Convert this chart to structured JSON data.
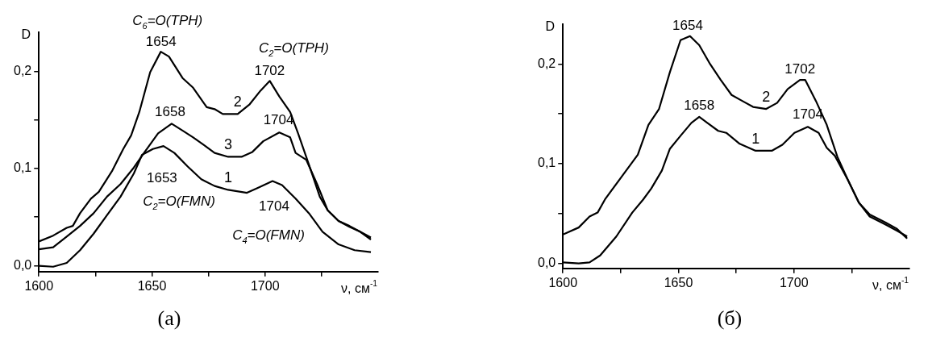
{
  "chart_data": [
    {
      "type": "line",
      "xlabel": "ν, см$^{-1}$",
      "ylabel": "D",
      "xlim": [
        1600,
        1750
      ],
      "ylim": [
        -0.006,
        0.24
      ],
      "xticks": [
        1600,
        {
          "value": 1625,
          "label": null
        },
        1650,
        {
          "value": 1675,
          "label": null
        },
        1700,
        {
          "value": 1725,
          "label": null
        }
      ],
      "yticks": [
        {
          "value": 0,
          "label": "0,0"
        },
        {
          "value": 0.05,
          "label": null
        },
        {
          "value": 0.1,
          "label": "0,1"
        },
        {
          "value": 0.15,
          "label": null
        },
        {
          "value": 0.2,
          "label": "0,2"
        }
      ],
      "series": [
        {
          "name": "2",
          "color": "#000000",
          "x": [
            1600,
            1606.3,
            1612.3,
            1615,
            1618.2,
            1623,
            1626.5,
            1632.5,
            1637.3,
            1640.8,
            1644.4,
            1649.2,
            1653.9,
            1657.5,
            1663.5,
            1668.2,
            1674.2,
            1677.7,
            1681.3,
            1687.9,
            1693.2,
            1698,
            1702.1,
            1706.3,
            1711.1,
            1714.6,
            1719.4,
            1724.2,
            1727.7,
            1732.5,
            1737.3,
            1742,
            1746.8
          ],
          "values": [
            0.025,
            0.031,
            0.039,
            0.041,
            0.054,
            0.069,
            0.076,
            0.098,
            0.12,
            0.134,
            0.158,
            0.199,
            0.22,
            0.215,
            0.193,
            0.183,
            0.163,
            0.161,
            0.156,
            0.156,
            0.166,
            0.18,
            0.19,
            0.174,
            0.158,
            0.136,
            0.104,
            0.071,
            0.057,
            0.046,
            0.041,
            0.035,
            0.027
          ]
        },
        {
          "name": "3",
          "color": "#000000",
          "x": [
            1600,
            1606.3,
            1612.3,
            1618.2,
            1624.2,
            1630.1,
            1636.1,
            1642,
            1646.8,
            1652.7,
            1658.7,
            1663.5,
            1668.2,
            1673,
            1677.7,
            1683.7,
            1689.6,
            1694.4,
            1699.2,
            1706.3,
            1711.1,
            1713.5,
            1718.2,
            1723,
            1727.7,
            1732.5,
            1737.3,
            1742,
            1746.8
          ],
          "values": [
            0.017,
            0.019,
            0.03,
            0.041,
            0.054,
            0.071,
            0.084,
            0.101,
            0.117,
            0.136,
            0.146,
            0.139,
            0.132,
            0.124,
            0.116,
            0.112,
            0.112,
            0.117,
            0.128,
            0.137,
            0.132,
            0.116,
            0.109,
            0.084,
            0.057,
            0.046,
            0.04,
            0.035,
            0.029
          ]
        },
        {
          "name": "1",
          "color": "#000000",
          "x": [
            1600,
            1606.3,
            1612.3,
            1618.2,
            1624.2,
            1630.1,
            1636.1,
            1642,
            1645.6,
            1650.4,
            1655.1,
            1659.9,
            1665.8,
            1671.8,
            1677.7,
            1683.7,
            1692,
            1696.8,
            1703.3,
            1707.5,
            1713.5,
            1719.4,
            1725.4,
            1732.5,
            1739.6,
            1746.8
          ],
          "values": [
            0,
            -0.001,
            0.003,
            0.016,
            0.033,
            0.052,
            0.071,
            0.095,
            0.114,
            0.12,
            0.123,
            0.116,
            0.102,
            0.089,
            0.082,
            0.078,
            0.075,
            0.08,
            0.087,
            0.083,
            0.069,
            0.054,
            0.035,
            0.022,
            0.016,
            0.014
          ]
        }
      ],
      "annotations": [
        {
          "text": "1654",
          "x": 1654,
          "y": 0.22
        },
        {
          "text": "C$_{6}$=O(TPH)",
          "x": 1654,
          "y": 0.22
        },
        {
          "text": "1702",
          "x": 1702,
          "y": 0.19
        },
        {
          "text": "C$_{2}$=O(TPH)",
          "x": 1702,
          "y": 0.19
        },
        {
          "text": "1658",
          "x": 1658,
          "y": 0.146
        },
        {
          "text": "1704",
          "x": 1706,
          "y": 0.137
        },
        {
          "text": "1653",
          "x": 1653,
          "y": 0.123
        },
        "C$_{2}$=O(FMN)",
        {
          "text": "1704",
          "x": 1704,
          "y": 0.087
        },
        "C$_{4}$=O(FMN)",
        "(a)"
      ]
    },
    {
      "type": "line",
      "xlabel": "ν, см$^{-1}$",
      "ylabel": "D",
      "xlim": [
        1600,
        1750
      ],
      "ylim": [
        -0.005,
        0.24
      ],
      "xticks": [
        1600,
        {
          "value": 1625,
          "label": null
        },
        1650,
        {
          "value": 1675,
          "label": null
        },
        1700,
        {
          "value": 1725,
          "label": null
        }
      ],
      "yticks": [
        {
          "value": 0,
          "label": "0,0"
        },
        {
          "value": 0.05,
          "label": null
        },
        {
          "value": 0.1,
          "label": "0,1"
        },
        {
          "value": 0.15,
          "label": null
        },
        {
          "value": 0.2,
          "label": "0,2"
        }
      ],
      "series": [
        {
          "name": "2",
          "color": "#000000",
          "x": [
            1600,
            1606.8,
            1611.5,
            1615,
            1618.4,
            1625.4,
            1632.4,
            1637,
            1641.6,
            1646.3,
            1650.9,
            1655,
            1659,
            1663.7,
            1668.3,
            1673,
            1677.6,
            1682.3,
            1688,
            1692.7,
            1697.3,
            1702.6,
            1704.9,
            1709.5,
            1714.2,
            1718.8,
            1723.5,
            1728.1,
            1732.8,
            1739.7,
            1744.4,
            1749
          ],
          "values": [
            0.029,
            0.036,
            0.047,
            0.051,
            0.065,
            0.087,
            0.109,
            0.139,
            0.155,
            0.192,
            0.224,
            0.228,
            0.219,
            0.2,
            0.184,
            0.169,
            0.163,
            0.157,
            0.155,
            0.161,
            0.175,
            0.184,
            0.184,
            0.163,
            0.139,
            0.107,
            0.083,
            0.061,
            0.049,
            0.041,
            0.035,
            0.025
          ]
        },
        {
          "name": "1",
          "color": "#000000",
          "x": [
            1600,
            1606.8,
            1611.5,
            1616.1,
            1623.1,
            1630,
            1634.7,
            1638.2,
            1642.8,
            1646.3,
            1650.9,
            1655.6,
            1659,
            1662.5,
            1667.2,
            1670.7,
            1676.5,
            1683.4,
            1690.4,
            1695,
            1700.2,
            1706,
            1710.7,
            1714.2,
            1717.7,
            1723.5,
            1728.1,
            1732.8,
            1739.7,
            1744.4,
            1749
          ],
          "values": [
            0.001,
            0,
            0.001,
            0.008,
            0.027,
            0.051,
            0.064,
            0.075,
            0.093,
            0.115,
            0.128,
            0.141,
            0.147,
            0.141,
            0.133,
            0.131,
            0.12,
            0.113,
            0.113,
            0.119,
            0.131,
            0.137,
            0.131,
            0.116,
            0.108,
            0.083,
            0.061,
            0.047,
            0.039,
            0.033,
            0.027
          ]
        }
      ],
      "annotations": [
        {
          "text": "1654",
          "x": 1654,
          "y": 0.228
        },
        {
          "text": "1702",
          "x": 1702.6,
          "y": 0.184
        },
        {
          "text": "1658",
          "x": 1659,
          "y": 0.147
        },
        {
          "text": "1704",
          "x": 1706,
          "y": 0.137
        },
        "(б)"
      ]
    }
  ]
}
